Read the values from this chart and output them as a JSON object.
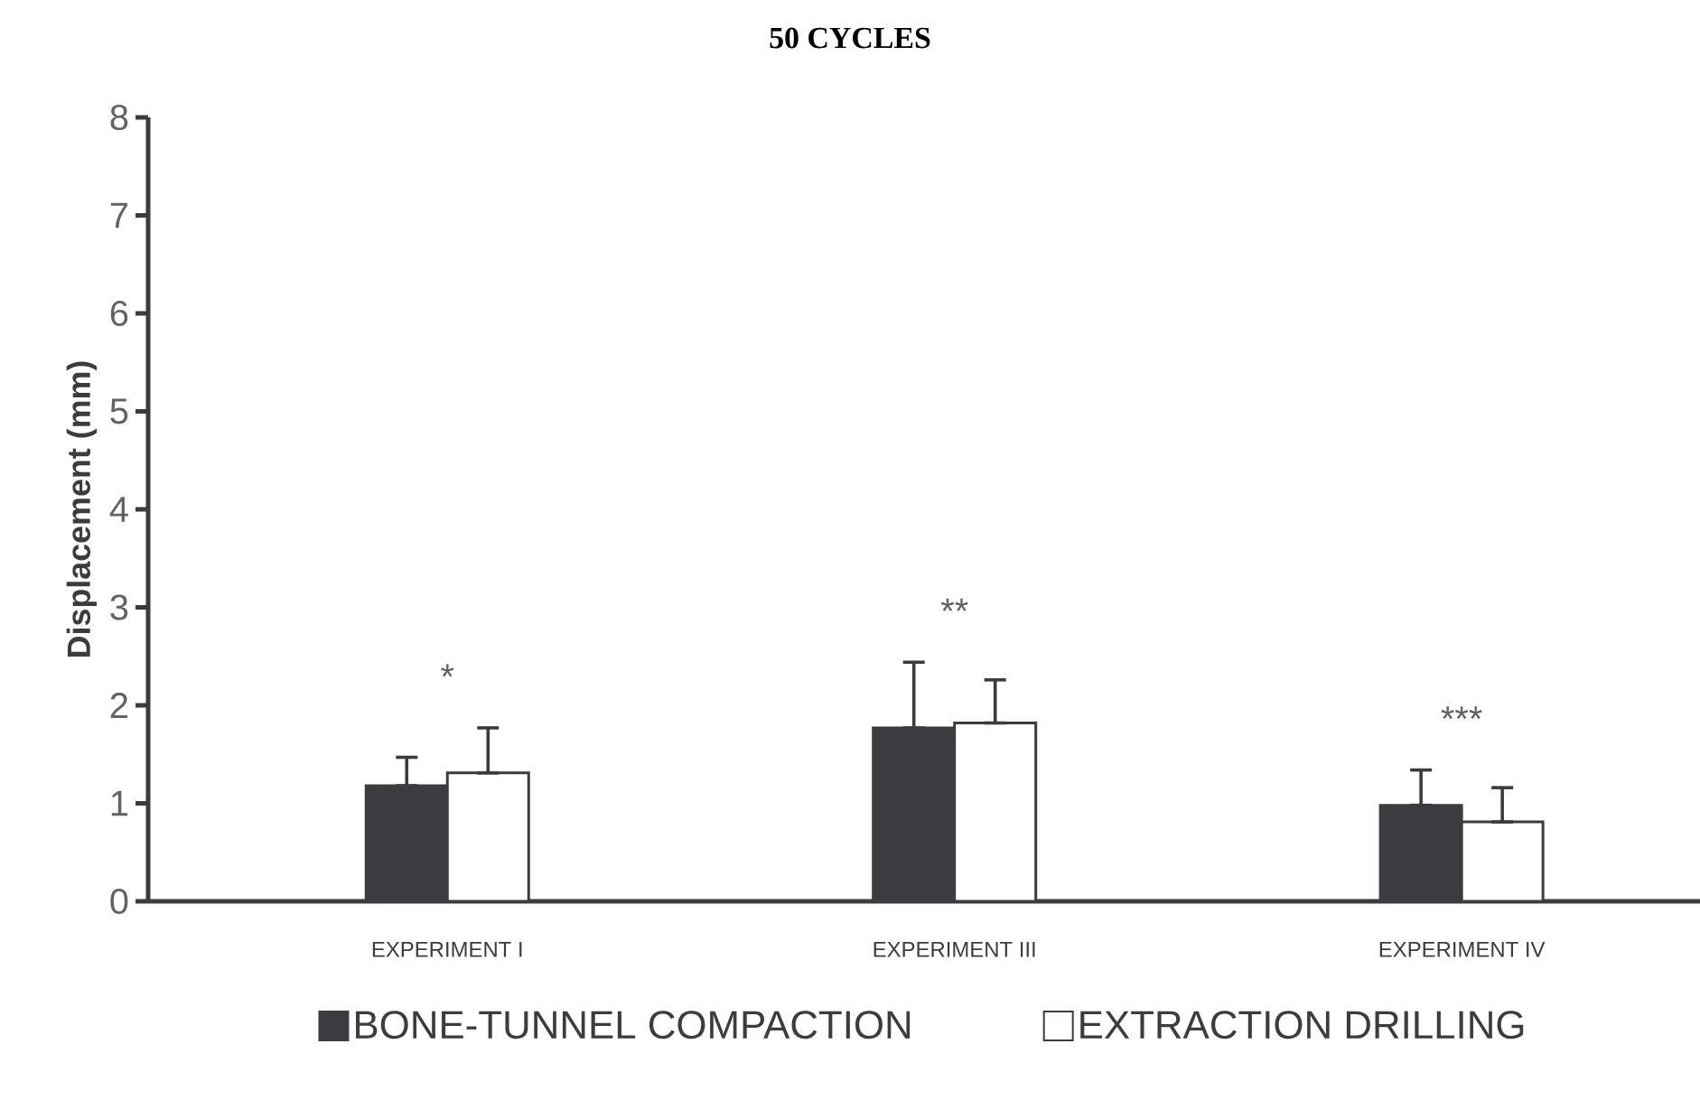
{
  "chart_data": {
    "type": "bar",
    "title": "50 CYCLES",
    "ylabel": "Displacement (mm)",
    "categories": [
      "EXPERIMENT I",
      "EXPERIMENT III",
      "EXPERIMENT IV"
    ],
    "series": [
      {
        "name": "BONE-TUNNEL COMPACTION",
        "color": "#3d3a40",
        "values": [
          1.18,
          1.77,
          0.98
        ],
        "errors": [
          [
            1.18,
            1.47
          ],
          [
            1.77,
            2.44
          ],
          [
            0.98,
            1.34
          ]
        ]
      },
      {
        "name": "EXTRACTION DRILLING",
        "color": "#ffffff",
        "values": [
          1.31,
          1.82,
          0.81
        ],
        "errors": [
          [
            1.31,
            1.77
          ],
          [
            1.82,
            2.26
          ],
          [
            0.81,
            1.16
          ]
        ]
      }
    ],
    "ylim": [
      0,
      8
    ],
    "yticks": [
      0,
      1,
      2,
      3,
      4,
      5,
      6,
      7,
      8
    ],
    "grid": false,
    "legend": "bottom",
    "annotations": [
      "*",
      "**",
      "***"
    ]
  }
}
